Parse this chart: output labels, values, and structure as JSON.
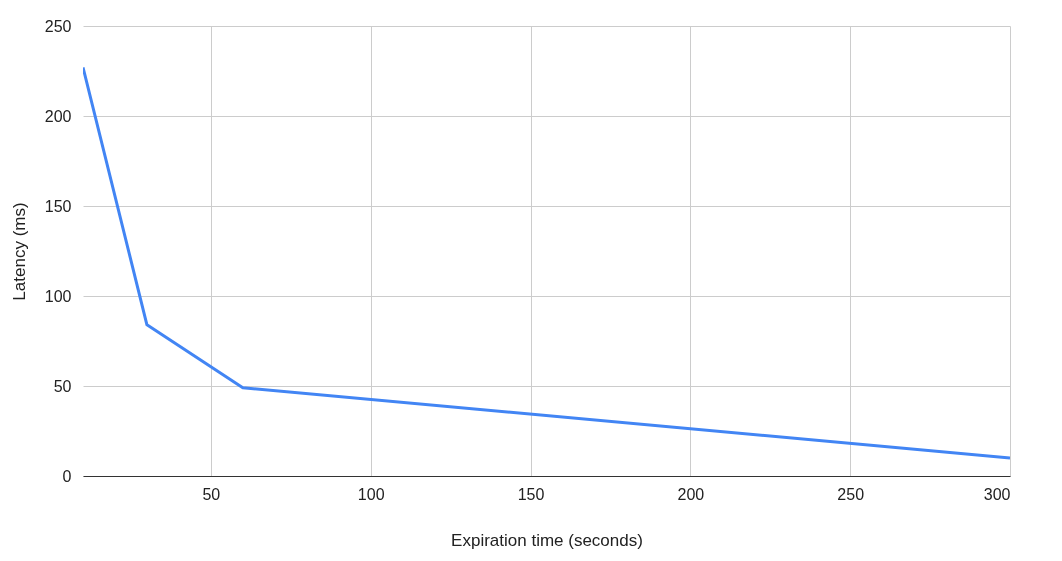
{
  "chart_data": {
    "type": "line",
    "xlabel": "Expiration time (seconds)",
    "ylabel": "Latency (ms)",
    "x": [
      10,
      30,
      60,
      300
    ],
    "series": [
      {
        "color": "#4285f4",
        "values": [
          227,
          84,
          49,
          10
        ]
      }
    ],
    "xlim": [
      10,
      300
    ],
    "xticks": [
      50,
      100,
      150,
      200,
      250,
      300
    ],
    "ylim": [
      0,
      250
    ],
    "yticks": [
      0,
      50,
      100,
      150,
      200,
      250
    ],
    "grid": true,
    "legend": false,
    "marker": "none",
    "line_style": "solid"
  }
}
